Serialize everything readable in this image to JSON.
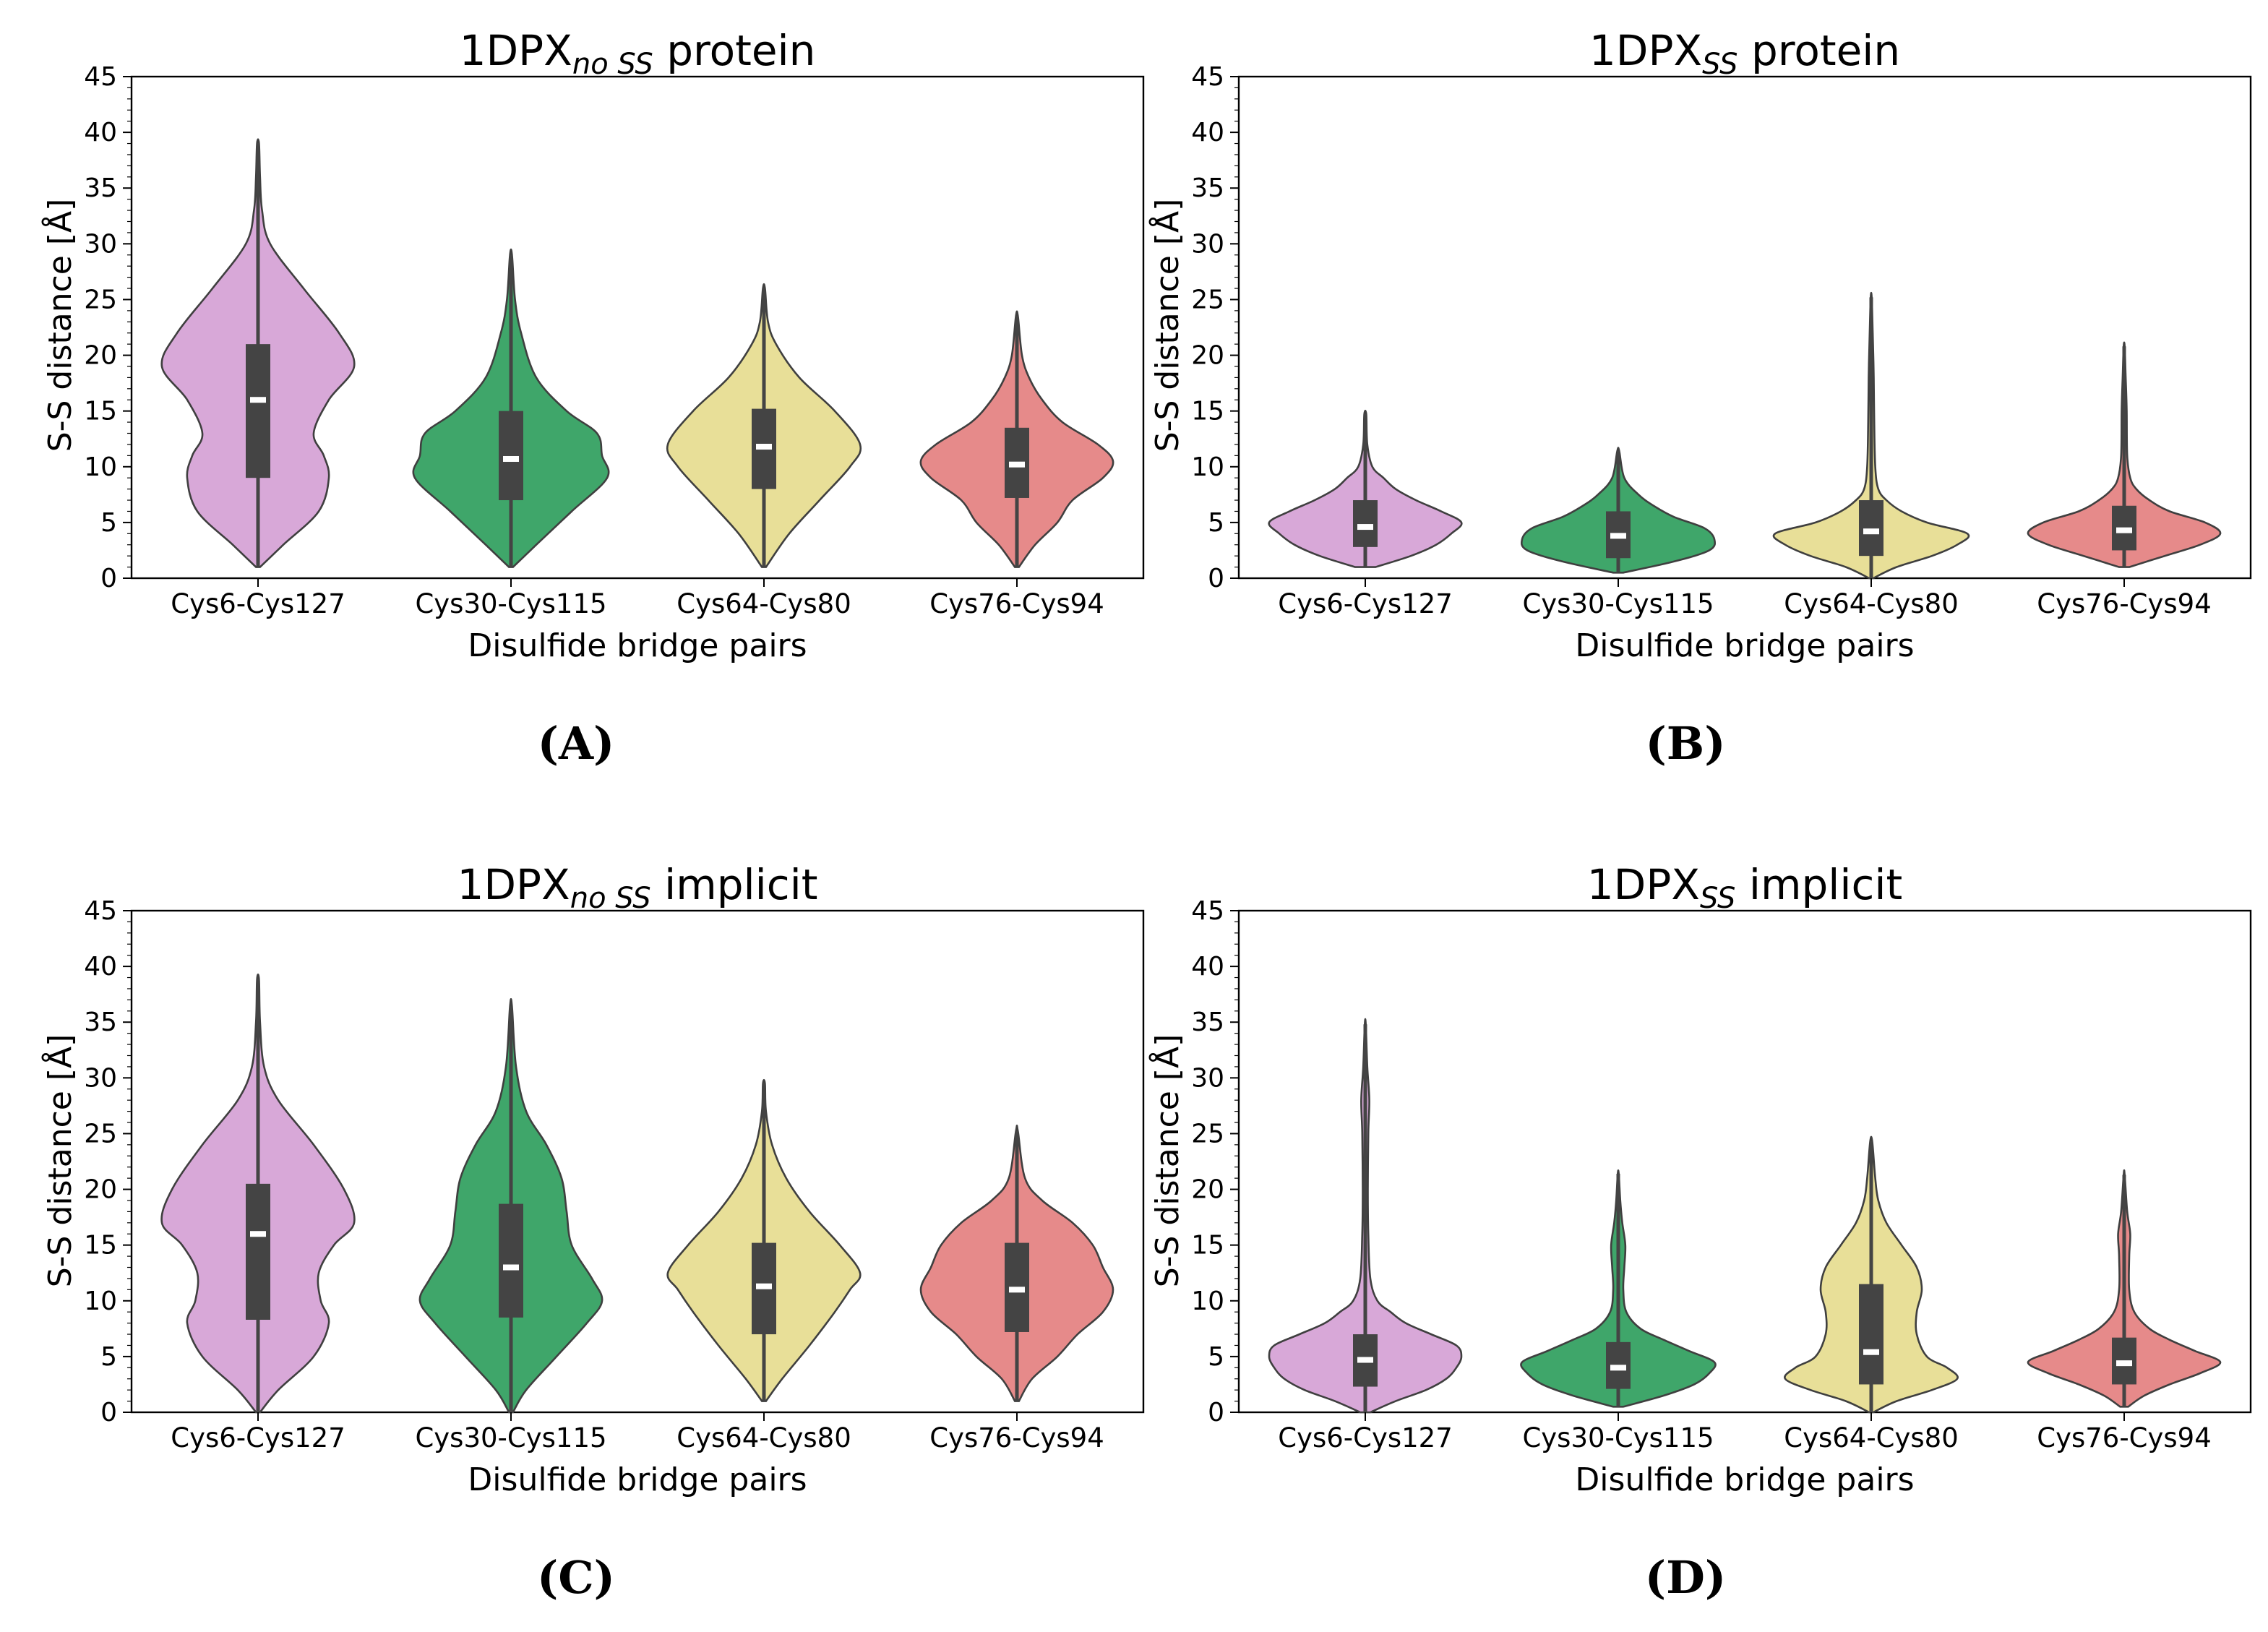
{
  "chart_data": [
    {
      "type": "violin",
      "panel_label": "(A)",
      "title": {
        "prefix": "1DPX",
        "subscript": "no SS",
        "suffix": " protein"
      },
      "xlabel": "Disulfide bridge pairs",
      "ylabel": "S-S distance [Å]",
      "ylim": [
        0,
        45
      ],
      "yticks": [
        "0",
        "5",
        "10",
        "15",
        "20",
        "25",
        "30",
        "35",
        "40",
        "45"
      ],
      "categories": [
        "Cys6-Cys127",
        "Cys30-Cys115",
        "Cys64-Cys80",
        "Cys76-Cys94"
      ],
      "colors": [
        "#d8a8d8",
        "#3fa66a",
        "#e8df98",
        "#e68a8a"
      ],
      "violins": [
        {
          "min": 1,
          "max": 39,
          "q1": 9,
          "median": 16,
          "q3": 21,
          "profile": [
            [
              1,
              0.02
            ],
            [
              3,
              0.25
            ],
            [
              6,
              0.6
            ],
            [
              9,
              0.7
            ],
            [
              11,
              0.65
            ],
            [
              13,
              0.55
            ],
            [
              16,
              0.7
            ],
            [
              19,
              0.95
            ],
            [
              22,
              0.8
            ],
            [
              26,
              0.45
            ],
            [
              30,
              0.12
            ],
            [
              33,
              0.04
            ],
            [
              36,
              0.02
            ],
            [
              39,
              0.01
            ]
          ]
        },
        {
          "min": 1,
          "max": 29,
          "q1": 7,
          "median": 10.7,
          "q3": 15,
          "profile": [
            [
              1,
              0.02
            ],
            [
              3,
              0.25
            ],
            [
              6,
              0.6
            ],
            [
              9,
              0.95
            ],
            [
              11,
              0.9
            ],
            [
              13,
              0.85
            ],
            [
              15,
              0.55
            ],
            [
              18,
              0.25
            ],
            [
              22,
              0.1
            ],
            [
              25,
              0.04
            ],
            [
              29,
              0.01
            ]
          ]
        },
        {
          "min": 1,
          "max": 26,
          "q1": 8,
          "median": 11.8,
          "q3": 15.2,
          "profile": [
            [
              1,
              0.02
            ],
            [
              4,
              0.25
            ],
            [
              7,
              0.55
            ],
            [
              10,
              0.85
            ],
            [
              12,
              0.95
            ],
            [
              15,
              0.7
            ],
            [
              18,
              0.35
            ],
            [
              21,
              0.12
            ],
            [
              23,
              0.04
            ],
            [
              26,
              0.01
            ]
          ]
        },
        {
          "min": 1,
          "max": 23.5,
          "q1": 7.2,
          "median": 10.2,
          "q3": 13.5,
          "profile": [
            [
              1,
              0.02
            ],
            [
              3,
              0.18
            ],
            [
              5,
              0.4
            ],
            [
              7,
              0.55
            ],
            [
              9,
              0.85
            ],
            [
              10.5,
              0.95
            ],
            [
              12,
              0.8
            ],
            [
              14,
              0.45
            ],
            [
              16,
              0.25
            ],
            [
              18,
              0.12
            ],
            [
              20,
              0.05
            ],
            [
              23.5,
              0.01
            ]
          ]
        }
      ]
    },
    {
      "type": "violin",
      "panel_label": "(B)",
      "title": {
        "prefix": "1DPX",
        "subscript": "SS",
        "suffix": " protein"
      },
      "xlabel": "Disulfide bridge pairs",
      "ylabel": "S-S distance [Å]",
      "ylim": [
        0,
        45
      ],
      "yticks": [
        "0",
        "5",
        "10",
        "15",
        "20",
        "25",
        "30",
        "35",
        "40",
        "45"
      ],
      "categories": [
        "Cys6-Cys127",
        "Cys30-Cys115",
        "Cys64-Cys80",
        "Cys76-Cys94"
      ],
      "colors": [
        "#d8a8d8",
        "#3fa66a",
        "#e8df98",
        "#e68a8a"
      ],
      "violins": [
        {
          "min": 1,
          "max": 14.7,
          "q1": 2.8,
          "median": 4.6,
          "q3": 7,
          "profile": [
            [
              1,
              0.1
            ],
            [
              2,
              0.45
            ],
            [
              3,
              0.7
            ],
            [
              4,
              0.85
            ],
            [
              5,
              0.95
            ],
            [
              6,
              0.75
            ],
            [
              7,
              0.5
            ],
            [
              8,
              0.3
            ],
            [
              9,
              0.18
            ],
            [
              10,
              0.07
            ],
            [
              12,
              0.02
            ],
            [
              14.7,
              0.01
            ]
          ]
        },
        {
          "min": 0.5,
          "max": 11.4,
          "q1": 1.8,
          "median": 3.8,
          "q3": 6,
          "profile": [
            [
              0.5,
              0.05
            ],
            [
              1.5,
              0.55
            ],
            [
              2.5,
              0.9
            ],
            [
              3.5,
              0.95
            ],
            [
              4.5,
              0.85
            ],
            [
              5.5,
              0.55
            ],
            [
              6.5,
              0.35
            ],
            [
              7.5,
              0.2
            ],
            [
              9,
              0.06
            ],
            [
              11.4,
              0.01
            ]
          ]
        },
        {
          "min": 0,
          "max": 25.2,
          "q1": 2,
          "median": 4.2,
          "q3": 7,
          "profile": [
            [
              0,
              0.02
            ],
            [
              1,
              0.25
            ],
            [
              2,
              0.6
            ],
            [
              3,
              0.85
            ],
            [
              4,
              0.95
            ],
            [
              5,
              0.55
            ],
            [
              6,
              0.3
            ],
            [
              7,
              0.15
            ],
            [
              8,
              0.07
            ],
            [
              10,
              0.04
            ],
            [
              14,
              0.03
            ],
            [
              18,
              0.025
            ],
            [
              22,
              0.015
            ],
            [
              25.2,
              0.005
            ]
          ]
        },
        {
          "min": 1,
          "max": 20.8,
          "q1": 2.5,
          "median": 4.3,
          "q3": 6.5,
          "profile": [
            [
              1,
              0.05
            ],
            [
              2,
              0.4
            ],
            [
              3,
              0.75
            ],
            [
              4,
              0.95
            ],
            [
              5,
              0.8
            ],
            [
              6,
              0.45
            ],
            [
              7,
              0.25
            ],
            [
              8,
              0.12
            ],
            [
              9,
              0.06
            ],
            [
              11,
              0.03
            ],
            [
              15,
              0.025
            ],
            [
              18,
              0.015
            ],
            [
              20.8,
              0.005
            ]
          ]
        }
      ]
    },
    {
      "type": "violin",
      "panel_label": "(C)",
      "title": {
        "prefix": "1DPX",
        "subscript": "no SS",
        "suffix": " implicit"
      },
      "xlabel": "Disulfide bridge pairs",
      "ylabel": "S-S distance [Å]",
      "ylim": [
        0,
        45
      ],
      "yticks": [
        "0",
        "5",
        "10",
        "15",
        "20",
        "25",
        "30",
        "35",
        "40",
        "45"
      ],
      "categories": [
        "Cys6-Cys127",
        "Cys30-Cys115",
        "Cys64-Cys80",
        "Cys76-Cys94"
      ],
      "colors": [
        "#d8a8d8",
        "#3fa66a",
        "#e8df98",
        "#e68a8a"
      ],
      "violins": [
        {
          "min": 0,
          "max": 38.8,
          "q1": 8.3,
          "median": 16,
          "q3": 20.5,
          "profile": [
            [
              0,
              0.02
            ],
            [
              2,
              0.2
            ],
            [
              5,
              0.55
            ],
            [
              8,
              0.7
            ],
            [
              10,
              0.62
            ],
            [
              12.5,
              0.6
            ],
            [
              15,
              0.75
            ],
            [
              17,
              0.95
            ],
            [
              20,
              0.85
            ],
            [
              24,
              0.55
            ],
            [
              28,
              0.2
            ],
            [
              31,
              0.06
            ],
            [
              35,
              0.02
            ],
            [
              38.8,
              0.01
            ]
          ]
        },
        {
          "min": 0,
          "max": 36.4,
          "q1": 8.5,
          "median": 13,
          "q3": 18.7,
          "profile": [
            [
              0,
              0.02
            ],
            [
              2,
              0.15
            ],
            [
              5,
              0.45
            ],
            [
              8,
              0.75
            ],
            [
              10,
              0.9
            ],
            [
              12,
              0.8
            ],
            [
              15,
              0.6
            ],
            [
              18,
              0.55
            ],
            [
              21,
              0.5
            ],
            [
              24,
              0.35
            ],
            [
              27,
              0.15
            ],
            [
              31,
              0.05
            ],
            [
              36.4,
              0.01
            ]
          ]
        },
        {
          "min": 1,
          "max": 29.5,
          "q1": 7,
          "median": 11.3,
          "q3": 15.2,
          "profile": [
            [
              1,
              0.02
            ],
            [
              3,
              0.18
            ],
            [
              6,
              0.45
            ],
            [
              9,
              0.7
            ],
            [
              11,
              0.85
            ],
            [
              12.5,
              0.95
            ],
            [
              15,
              0.75
            ],
            [
              18,
              0.45
            ],
            [
              21,
              0.22
            ],
            [
              24,
              0.08
            ],
            [
              27,
              0.02
            ],
            [
              29.5,
              0.01
            ]
          ]
        },
        {
          "min": 1,
          "max": 25.2,
          "q1": 7.2,
          "median": 11,
          "q3": 15.2,
          "profile": [
            [
              1,
              0.02
            ],
            [
              3,
              0.15
            ],
            [
              5,
              0.4
            ],
            [
              7,
              0.6
            ],
            [
              9,
              0.85
            ],
            [
              11,
              0.95
            ],
            [
              13,
              0.85
            ],
            [
              15,
              0.75
            ],
            [
              17,
              0.55
            ],
            [
              19,
              0.25
            ],
            [
              21,
              0.08
            ],
            [
              25.2,
              0.01
            ]
          ]
        }
      ]
    },
    {
      "type": "violin",
      "panel_label": "(D)",
      "title": {
        "prefix": "1DPX",
        "subscript": "SS",
        "suffix": " implicit"
      },
      "xlabel": "Disulfide bridge pairs",
      "ylabel": "S-S distance [Å]",
      "ylim": [
        0,
        45
      ],
      "yticks": [
        "0",
        "5",
        "10",
        "15",
        "20",
        "25",
        "30",
        "35",
        "40",
        "45"
      ],
      "categories": [
        "Cys6-Cys127",
        "Cys30-Cys115",
        "Cys64-Cys80",
        "Cys76-Cys94"
      ],
      "colors": [
        "#d8a8d8",
        "#3fa66a",
        "#e8df98",
        "#e68a8a"
      ],
      "violins": [
        {
          "min": 0,
          "max": 34.8,
          "q1": 2.3,
          "median": 4.7,
          "q3": 7,
          "profile": [
            [
              0,
              0.05
            ],
            [
              1,
              0.3
            ],
            [
              2,
              0.6
            ],
            [
              3,
              0.8
            ],
            [
              4,
              0.9
            ],
            [
              5,
              0.95
            ],
            [
              6,
              0.9
            ],
            [
              7,
              0.65
            ],
            [
              8,
              0.4
            ],
            [
              9,
              0.25
            ],
            [
              10,
              0.12
            ],
            [
              12,
              0.05
            ],
            [
              16,
              0.03
            ],
            [
              20,
              0.025
            ],
            [
              25,
              0.03
            ],
            [
              28,
              0.04
            ],
            [
              31,
              0.02
            ],
            [
              34.8,
              0.005
            ]
          ]
        },
        {
          "min": 0.5,
          "max": 21.4,
          "q1": 2.1,
          "median": 4,
          "q3": 6.3,
          "profile": [
            [
              0.5,
              0.05
            ],
            [
              1.5,
              0.45
            ],
            [
              2.5,
              0.75
            ],
            [
              3.5,
              0.9
            ],
            [
              4.5,
              0.95
            ],
            [
              5.5,
              0.7
            ],
            [
              6.5,
              0.45
            ],
            [
              7.5,
              0.22
            ],
            [
              9,
              0.08
            ],
            [
              11,
              0.05
            ],
            [
              13,
              0.06
            ],
            [
              15,
              0.07
            ],
            [
              17,
              0.04
            ],
            [
              19,
              0.02
            ],
            [
              21.4,
              0.005
            ]
          ]
        },
        {
          "min": 0,
          "max": 24.3,
          "q1": 2.5,
          "median": 5.4,
          "q3": 11.5,
          "profile": [
            [
              0,
              0.02
            ],
            [
              1,
              0.25
            ],
            [
              2,
              0.6
            ],
            [
              3,
              0.85
            ],
            [
              4,
              0.75
            ],
            [
              5,
              0.55
            ],
            [
              7,
              0.45
            ],
            [
              9,
              0.45
            ],
            [
              11,
              0.5
            ],
            [
              13,
              0.45
            ],
            [
              15,
              0.3
            ],
            [
              17,
              0.15
            ],
            [
              19,
              0.07
            ],
            [
              21,
              0.04
            ],
            [
              24.3,
              0.01
            ]
          ]
        },
        {
          "min": 0.5,
          "max": 21.3,
          "q1": 2.5,
          "median": 4.4,
          "q3": 6.7,
          "profile": [
            [
              0.5,
              0.04
            ],
            [
              1.5,
              0.2
            ],
            [
              2.5,
              0.45
            ],
            [
              3.5,
              0.75
            ],
            [
              4.5,
              0.95
            ],
            [
              5.5,
              0.7
            ],
            [
              6.5,
              0.45
            ],
            [
              7.5,
              0.25
            ],
            [
              9,
              0.1
            ],
            [
              11,
              0.05
            ],
            [
              14,
              0.05
            ],
            [
              16,
              0.06
            ],
            [
              18,
              0.03
            ],
            [
              21.3,
              0.005
            ]
          ]
        }
      ]
    }
  ]
}
